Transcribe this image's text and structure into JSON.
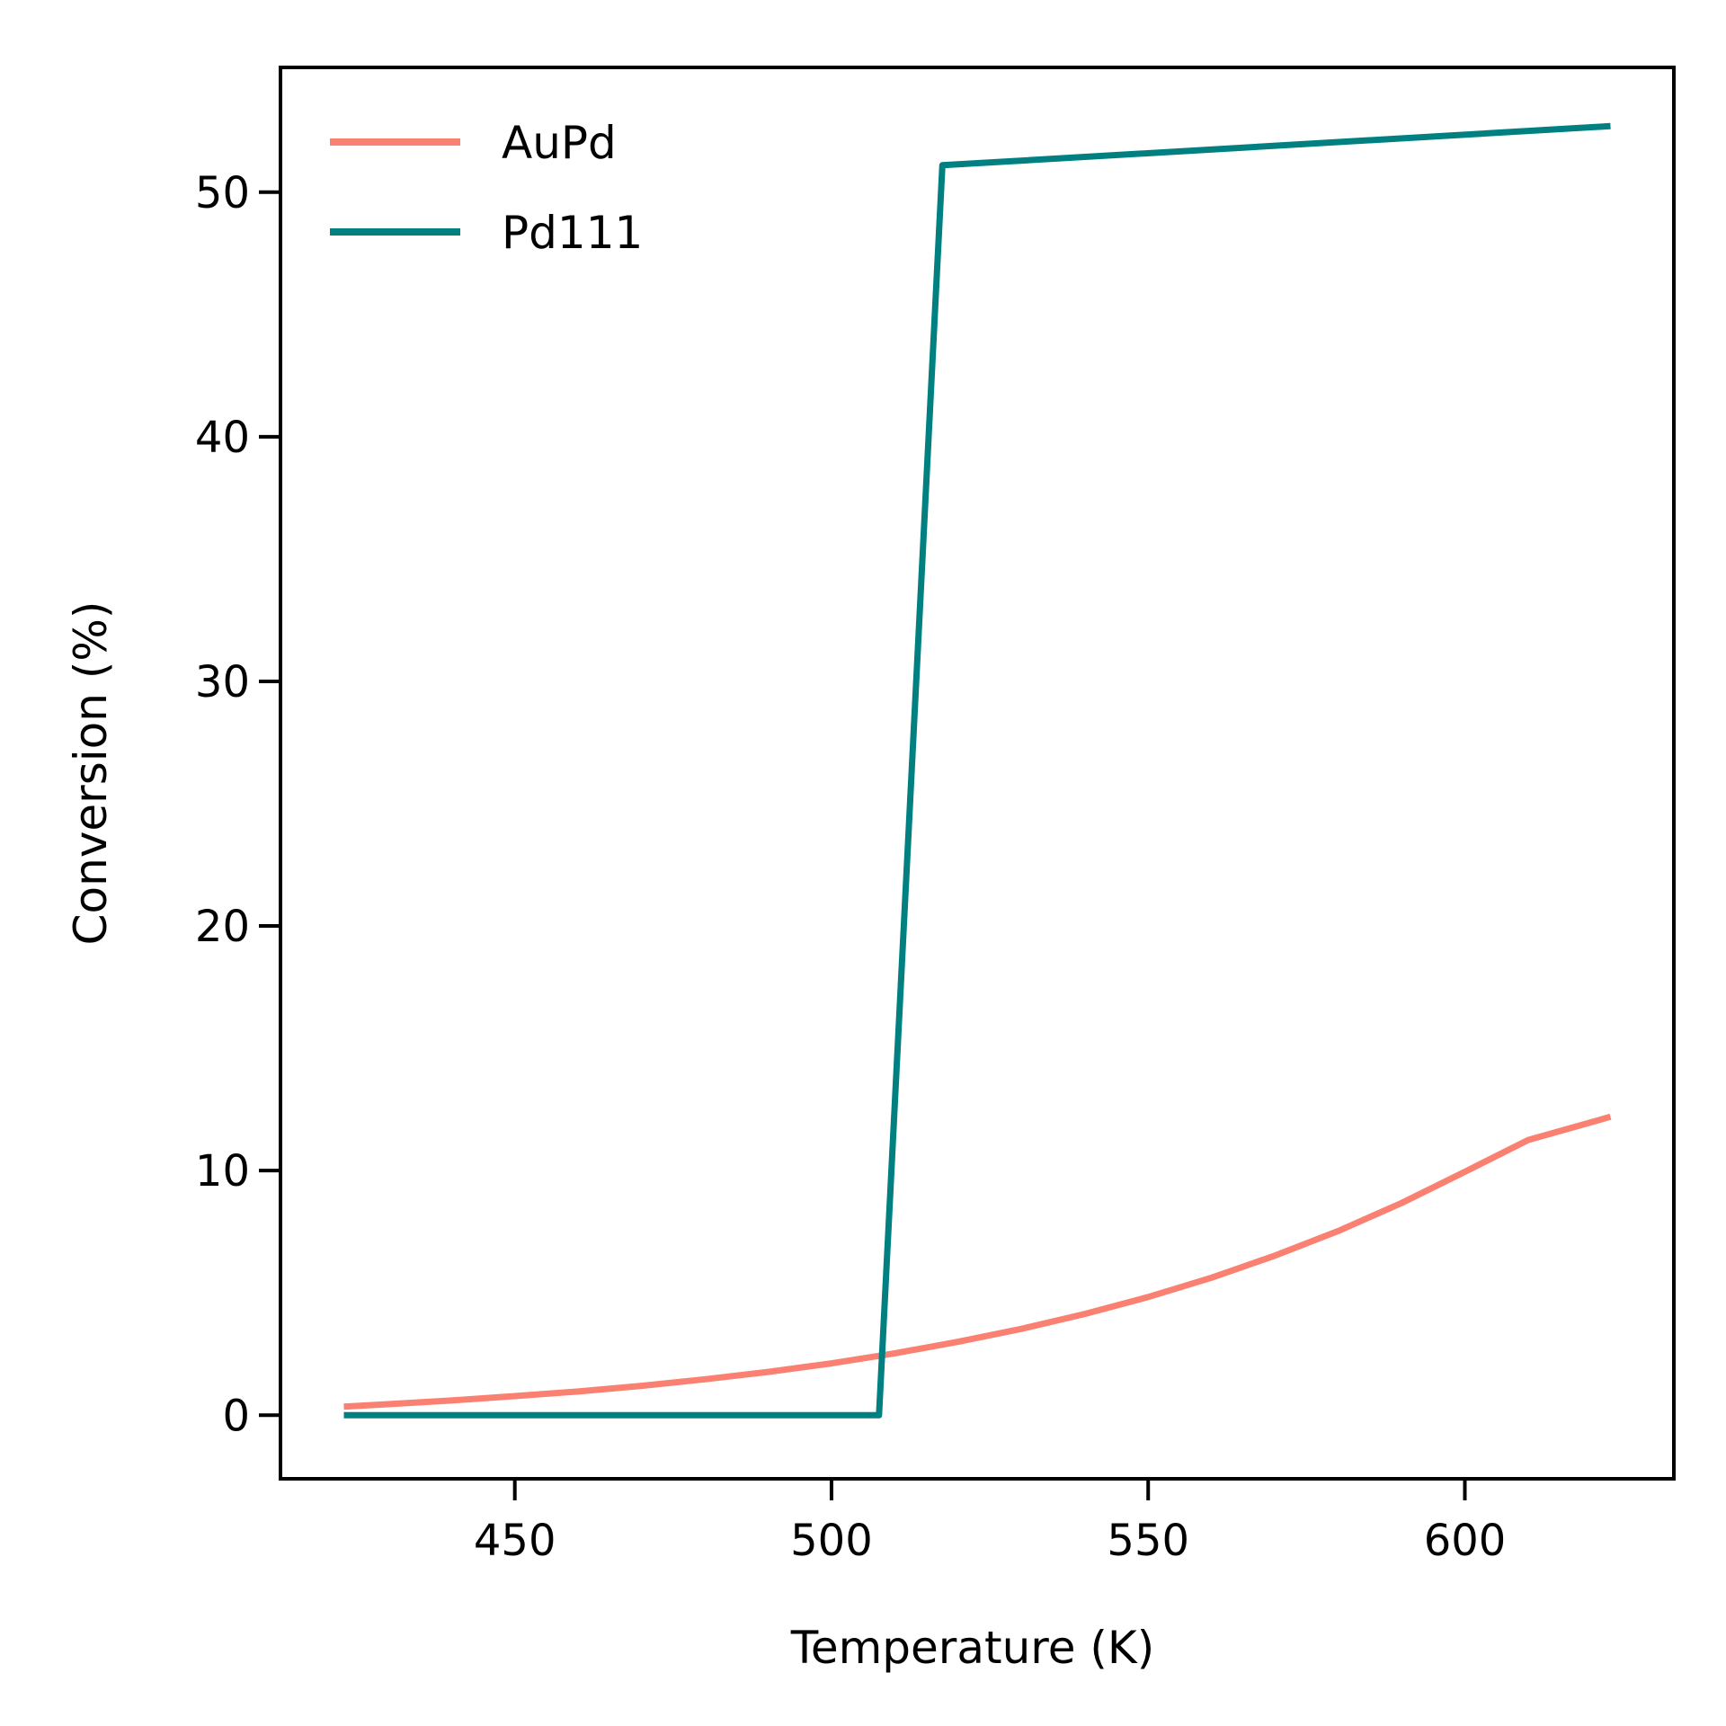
{
  "chart_data": {
    "type": "line",
    "title": "",
    "xlabel": "Temperature (K)",
    "ylabel": "Conversion (%)",
    "xlim": [
      413,
      633
    ],
    "ylim": [
      -2.6,
      55.1
    ],
    "xticks": [
      450,
      500,
      550,
      600
    ],
    "yticks": [
      0,
      10,
      20,
      30,
      40,
      50
    ],
    "grid": false,
    "legend": {
      "placement": "upper-left",
      "frame": false
    },
    "series": [
      {
        "name": "AuPd",
        "color": "#fa8072",
        "x": [
          423,
          430,
          440,
          450,
          460,
          470,
          480,
          490,
          500,
          510,
          520,
          530,
          540,
          550,
          560,
          570,
          580,
          590,
          600,
          610,
          623
        ],
        "y": [
          0.35,
          0.45,
          0.6,
          0.78,
          0.97,
          1.2,
          1.47,
          1.77,
          2.12,
          2.53,
          3.0,
          3.53,
          4.14,
          4.83,
          5.62,
          6.52,
          7.53,
          8.67,
          9.95,
          11.25,
          12.2
        ]
      },
      {
        "name": "Pd111",
        "color": "#008080",
        "x": [
          423,
          507.5,
          517.5,
          623
        ],
        "y": [
          0.0,
          0.0,
          51.1,
          52.7
        ]
      }
    ]
  }
}
